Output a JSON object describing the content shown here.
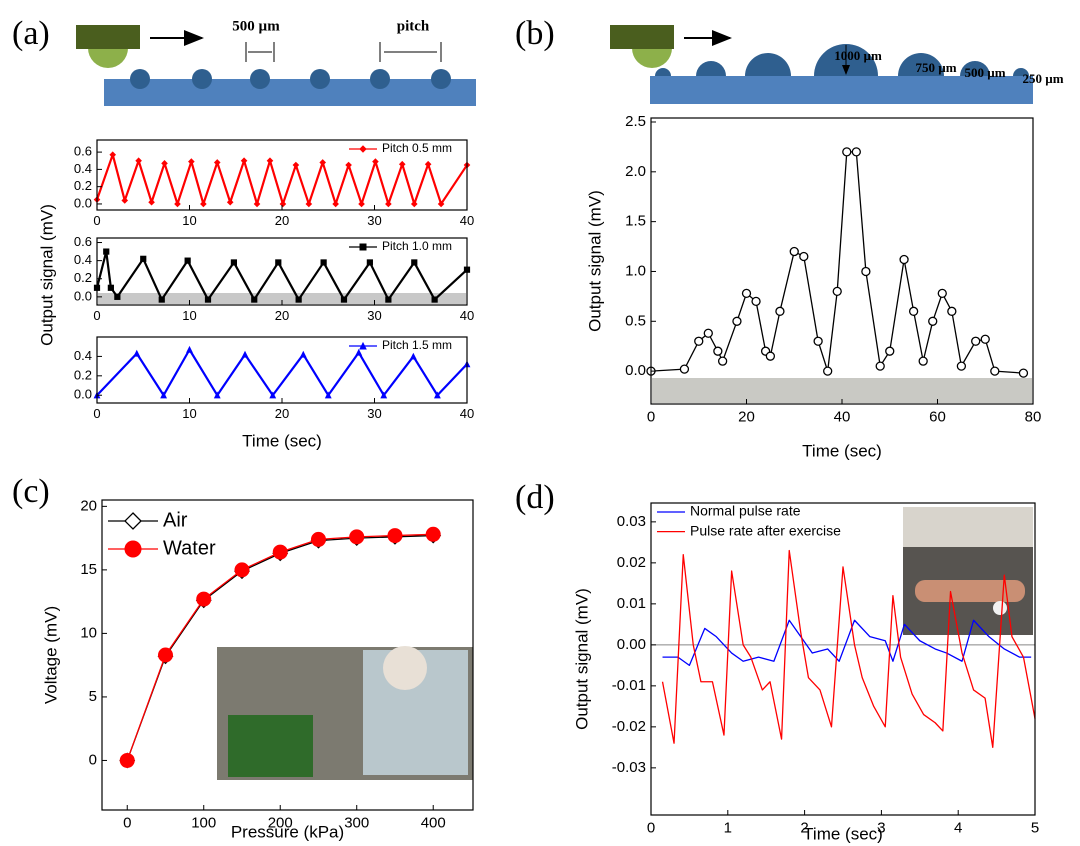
{
  "chart_data": [
    {
      "type": "line",
      "panel_label": "(a)",
      "annotations": [
        "500 µm",
        "pitch"
      ],
      "xlim": [
        0,
        40
      ],
      "xticks": [
        0,
        10,
        20,
        30,
        40
      ],
      "ylim": [
        -0.07,
        0.74
      ],
      "yticks": [
        {
          "value": 0,
          "label": "0.0"
        },
        0.2,
        0.4,
        0.6
      ],
      "legend": "upper right",
      "series": [
        {
          "name": "Pitch 0.5 mm",
          "color": "#ff0000",
          "marker": "diamond",
          "x": [
            0,
            1.7,
            3.0,
            4.5,
            5.9,
            7.3,
            8.7,
            10.2,
            11.5,
            13.0,
            14.4,
            15.9,
            17.3,
            18.7,
            20.1,
            21.5,
            22.9,
            24.4,
            25.8,
            27.2,
            28.6,
            30.1,
            31.5,
            33.0,
            34.3,
            35.8,
            37.2,
            40
          ],
          "values": [
            0.05,
            0.57,
            0.04,
            0.5,
            0.02,
            0.47,
            0,
            0.49,
            0,
            0.48,
            0.02,
            0.5,
            0,
            0.5,
            0,
            0.45,
            0,
            0.48,
            0,
            0.45,
            0,
            0.49,
            0,
            0.46,
            0,
            0.46,
            0,
            0.45
          ]
        }
      ]
    },
    {
      "type": "line",
      "y_label": "Output signal (mV)",
      "xlim": [
        0,
        40
      ],
      "xticks": [
        0,
        10,
        20,
        30,
        40
      ],
      "ylim": [
        -0.09,
        0.65
      ],
      "yticks": [
        {
          "value": 0,
          "label": "0.0"
        },
        0.2,
        0.4,
        0.6
      ],
      "legend": "upper right",
      "series": [
        {
          "name": "Pitch 1.0 mm",
          "color": "#000000",
          "marker": "square",
          "x": [
            0,
            1,
            1.5,
            2.2,
            5,
            7,
            9.8,
            12,
            14.8,
            17,
            19.6,
            21.8,
            24.5,
            26.7,
            29.5,
            31.5,
            34.3,
            36.5,
            40
          ],
          "values": [
            0.1,
            0.5,
            0.1,
            0,
            0.42,
            -0.03,
            0.4,
            -0.03,
            0.38,
            -0.03,
            0.38,
            -0.03,
            0.38,
            -0.03,
            0.38,
            -0.03,
            0.38,
            -0.03,
            0.3
          ]
        }
      ]
    },
    {
      "type": "line",
      "x_label": "Time (sec)",
      "xlim": [
        0,
        40
      ],
      "xticks": [
        0,
        10,
        20,
        30,
        40
      ],
      "ylim": [
        -0.08,
        0.6
      ],
      "yticks": [
        {
          "value": 0,
          "label": "0.0"
        },
        0.2,
        0.4
      ],
      "legend": "upper right",
      "series": [
        {
          "name": "Pitch 1.5 mm",
          "color": "#0000ff",
          "marker": "triangle",
          "x": [
            0,
            4.3,
            7.2,
            10,
            13,
            16,
            19,
            22.3,
            25,
            28.3,
            31,
            34.2,
            36.8,
            40
          ],
          "values": [
            0,
            0.43,
            0,
            0.47,
            0,
            0.42,
            0,
            0.42,
            0,
            0.44,
            0,
            0.4,
            0,
            0.32
          ]
        }
      ]
    },
    {
      "type": "line",
      "panel_label": "(b)",
      "annotations": [
        "1000 µm",
        "750 µm",
        "500 µm",
        "250 µm"
      ],
      "x_label": "Time (sec)",
      "y_label": "Output signal (mV)",
      "xlim": [
        0,
        80
      ],
      "xticks": [
        0,
        20,
        40,
        60,
        80
      ],
      "ylim": [
        -0.33,
        2.54
      ],
      "yticks": [
        {
          "value": 0,
          "label": "0.0"
        },
        0.5,
        {
          "value": 1,
          "label": "1.0"
        },
        1.5,
        {
          "value": 2,
          "label": "2.0"
        },
        2.5
      ],
      "series": [
        {
          "color": "#000000",
          "marker": "circle",
          "hollow": true,
          "x": [
            0,
            7,
            10,
            12,
            14,
            15,
            18,
            20,
            22,
            24,
            25,
            27,
            30,
            32,
            35,
            37,
            39,
            41,
            43,
            45,
            48,
            50,
            53,
            55,
            57,
            59,
            61,
            63,
            65,
            68,
            70,
            72,
            78
          ],
          "values": [
            0,
            0.02,
            0.3,
            0.38,
            0.2,
            0.1,
            0.5,
            0.78,
            0.7,
            0.2,
            0.15,
            0.6,
            1.2,
            1.15,
            0.3,
            0,
            0.8,
            2.2,
            2.2,
            1,
            0.05,
            0.2,
            1.12,
            0.6,
            0.1,
            0.5,
            0.78,
            0.6,
            0.05,
            0.3,
            0.32,
            0,
            -0.02
          ]
        }
      ]
    },
    {
      "type": "line",
      "panel_label": "(c)",
      "x_label": "Pressure (kPa)",
      "y_label": "Voltage (mV)",
      "xlim": [
        -33,
        452
      ],
      "xticks": [
        0,
        100,
        200,
        300,
        400
      ],
      "ylim": [
        -3.9,
        20.5
      ],
      "yticks": [
        0,
        5,
        10,
        15,
        20
      ],
      "legend": "upper left",
      "x": [
        0,
        50,
        100,
        150,
        200,
        250,
        300,
        350,
        400
      ],
      "series": [
        {
          "name": "Air",
          "color": "#000000",
          "marker": "diamond",
          "hollow": true,
          "values": [
            0,
            8.2,
            12.6,
            14.9,
            16.3,
            17.3,
            17.5,
            17.6,
            17.7
          ]
        },
        {
          "name": "Water",
          "color": "#ff0000",
          "marker": "circle",
          "values": [
            0,
            8.3,
            12.7,
            15.0,
            16.4,
            17.4,
            17.6,
            17.7,
            17.8
          ]
        }
      ]
    },
    {
      "type": "line",
      "panel_label": "(d)",
      "x_label": "Time (sec)",
      "y_label": "Output signal (mV)",
      "xlim": [
        0,
        5
      ],
      "xticks": [
        0,
        1,
        2,
        3,
        4,
        5
      ],
      "ylim": [
        -0.0415,
        0.0346
      ],
      "yticks": [
        -0.03,
        -0.02,
        -0.01,
        {
          "value": 0,
          "label": "0.00"
        },
        0.01,
        0.02,
        0.03
      ],
      "legend": "upper left",
      "series": [
        {
          "name": "Normal pulse rate",
          "color": "#0000ff",
          "x": [
            0.15,
            0.35,
            0.5,
            0.7,
            0.85,
            1.05,
            1.2,
            1.4,
            1.6,
            1.8,
            1.95,
            2.1,
            2.3,
            2.45,
            2.65,
            2.85,
            3.05,
            3.15,
            3.3,
            3.5,
            3.7,
            3.85,
            4.05,
            4.2,
            4.4,
            4.6,
            4.8,
            4.95
          ],
          "values": [
            -0.003,
            -0.003,
            -0.005,
            0.004,
            0.002,
            -0.002,
            -0.004,
            -0.003,
            -0.004,
            0.006,
            0.002,
            -0.002,
            -0.001,
            -0.004,
            0.006,
            0.002,
            0.001,
            -0.004,
            0.005,
            0.001,
            -0.001,
            -0.002,
            -0.004,
            0.006,
            0.002,
            -0.001,
            -0.003,
            -0.003
          ]
        },
        {
          "name": "Pulse rate after exercise",
          "color": "#ff0000",
          "x": [
            0.15,
            0.3,
            0.42,
            0.55,
            0.65,
            0.8,
            0.95,
            1.05,
            1.2,
            1.3,
            1.45,
            1.55,
            1.7,
            1.8,
            1.95,
            2.05,
            2.2,
            2.35,
            2.5,
            2.65,
            2.75,
            2.9,
            3.05,
            3.15,
            3.25,
            3.4,
            3.55,
            3.7,
            3.8,
            3.9,
            4.05,
            4.2,
            4.35,
            4.45,
            4.6,
            4.7,
            4.85,
            5.0
          ],
          "values": [
            -0.009,
            -0.024,
            0.022,
            0,
            -0.009,
            -0.009,
            -0.022,
            0.018,
            0,
            -0.003,
            -0.011,
            -0.009,
            -0.023,
            0.023,
            0.003,
            -0.008,
            -0.011,
            -0.02,
            0.019,
            0,
            -0.008,
            -0.015,
            -0.02,
            0.012,
            -0.003,
            -0.012,
            -0.017,
            -0.019,
            -0.021,
            0.013,
            -0.002,
            -0.011,
            -0.013,
            -0.025,
            0.017,
            0.002,
            -0.003,
            -0.018
          ]
        }
      ]
    }
  ]
}
